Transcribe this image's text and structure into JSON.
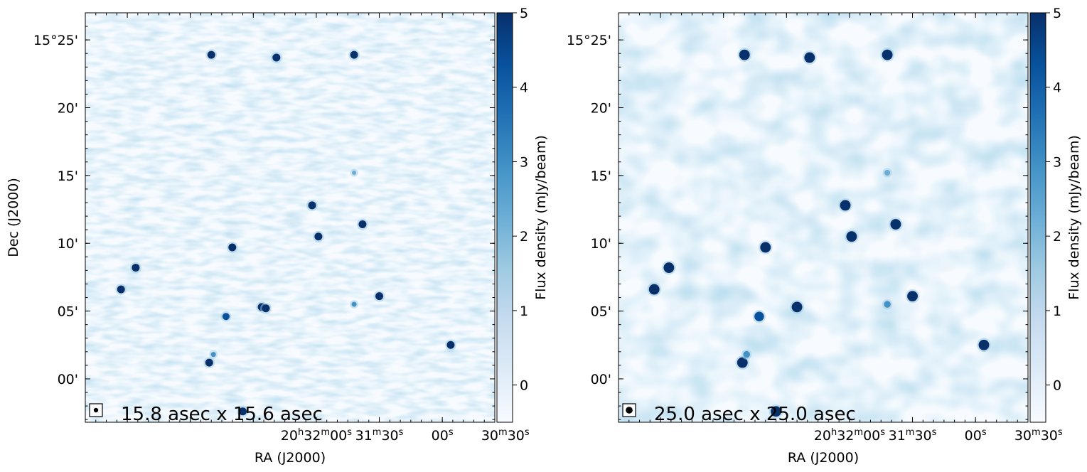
{
  "chart_data": [
    {
      "type": "heatmap",
      "xlabel": "RA (J2000)",
      "ylabel": "Dec (J2000)",
      "x_ticks": [
        {
          "h": "20",
          "m": "32",
          "s": "00"
        },
        {
          "h": "",
          "m": "31",
          "s": "30"
        },
        {
          "h": "",
          "m": "",
          "s": "00"
        },
        {
          "h": "",
          "m": "30",
          "s": "30"
        }
      ],
      "y_ticks": [
        "15°25'",
        "20'",
        "15'",
        "10'",
        "05'",
        "00'"
      ],
      "colorbar": {
        "label": "Flux density (mJy/beam)",
        "ticks": [
          "5",
          "4",
          "3",
          "2",
          "1",
          "0"
        ],
        "range": [
          -0.5,
          5
        ],
        "colormap": "Blues"
      },
      "beam_label": "15.8 asec x 15.6 asec",
      "sources": [
        {
          "ra_sec": 1970,
          "dec_min": 23.9,
          "flux": 5
        },
        {
          "ra_sec": 1939,
          "dec_min": 23.7,
          "flux": 5
        },
        {
          "ra_sec": 1902,
          "dec_min": 23.9,
          "flux": 5
        },
        {
          "ra_sec": 1922,
          "dec_min": 12.8,
          "flux": 5
        },
        {
          "ra_sec": 1919,
          "dec_min": 10.5,
          "flux": 5
        },
        {
          "ra_sec": 1960,
          "dec_min": 9.7,
          "flux": 5
        },
        {
          "ra_sec": 1898,
          "dec_min": 11.4,
          "flux": 5
        },
        {
          "ra_sec": 2006,
          "dec_min": 8.2,
          "flux": 5
        },
        {
          "ra_sec": 2013,
          "dec_min": 6.6,
          "flux": 5
        },
        {
          "ra_sec": 1946,
          "dec_min": 5.3,
          "flux": 5
        },
        {
          "ra_sec": 1944,
          "dec_min": 5.2,
          "flux": 5
        },
        {
          "ra_sec": 1963,
          "dec_min": 4.6,
          "flux": 4
        },
        {
          "ra_sec": 1890,
          "dec_min": 6.1,
          "flux": 5
        },
        {
          "ra_sec": 1902,
          "dec_min": 5.5,
          "flux": 3
        },
        {
          "ra_sec": 1971,
          "dec_min": 1.2,
          "flux": 5
        },
        {
          "ra_sec": 1969,
          "dec_min": 1.8,
          "flux": 3
        },
        {
          "ra_sec": 1856,
          "dec_min": 2.5,
          "flux": 5
        },
        {
          "ra_sec": 1902,
          "dec_min": 15.2,
          "flux": 2
        },
        {
          "ra_sec": 1955,
          "dec_min": -2.4,
          "flux": 5
        }
      ]
    },
    {
      "type": "heatmap",
      "xlabel": "RA (J2000)",
      "ylabel": "",
      "x_ticks": [
        {
          "h": "20",
          "m": "32",
          "s": "00"
        },
        {
          "h": "",
          "m": "31",
          "s": "30"
        },
        {
          "h": "",
          "m": "",
          "s": "00"
        },
        {
          "h": "",
          "m": "30",
          "s": "30"
        }
      ],
      "y_ticks": [
        "15°25'",
        "20'",
        "15'",
        "10'",
        "05'",
        "00'"
      ],
      "colorbar": {
        "label": "Flux density (mJy/beam)",
        "ticks": [
          "5",
          "4",
          "3",
          "2",
          "1",
          "0"
        ],
        "range": [
          -0.5,
          5
        ],
        "colormap": "Blues"
      },
      "beam_label": "25.0 asec x 25.0 asec",
      "sources": [
        {
          "ra_sec": 1970,
          "dec_min": 23.9,
          "flux": 5
        },
        {
          "ra_sec": 1939,
          "dec_min": 23.7,
          "flux": 5
        },
        {
          "ra_sec": 1902,
          "dec_min": 23.9,
          "flux": 5
        },
        {
          "ra_sec": 1922,
          "dec_min": 12.8,
          "flux": 5
        },
        {
          "ra_sec": 1919,
          "dec_min": 10.5,
          "flux": 5
        },
        {
          "ra_sec": 1960,
          "dec_min": 9.7,
          "flux": 5
        },
        {
          "ra_sec": 1898,
          "dec_min": 11.4,
          "flux": 5
        },
        {
          "ra_sec": 2006,
          "dec_min": 8.2,
          "flux": 5
        },
        {
          "ra_sec": 2013,
          "dec_min": 6.6,
          "flux": 5
        },
        {
          "ra_sec": 1945,
          "dec_min": 5.3,
          "flux": 5
        },
        {
          "ra_sec": 1963,
          "dec_min": 4.6,
          "flux": 4
        },
        {
          "ra_sec": 1890,
          "dec_min": 6.1,
          "flux": 5
        },
        {
          "ra_sec": 1902,
          "dec_min": 5.5,
          "flux": 3
        },
        {
          "ra_sec": 1971,
          "dec_min": 1.2,
          "flux": 5
        },
        {
          "ra_sec": 1969,
          "dec_min": 1.8,
          "flux": 3
        },
        {
          "ra_sec": 1856,
          "dec_min": 2.5,
          "flux": 5
        },
        {
          "ra_sec": 1902,
          "dec_min": 15.2,
          "flux": 2
        },
        {
          "ra_sec": 1955,
          "dec_min": -2.4,
          "flux": 5
        }
      ]
    }
  ]
}
